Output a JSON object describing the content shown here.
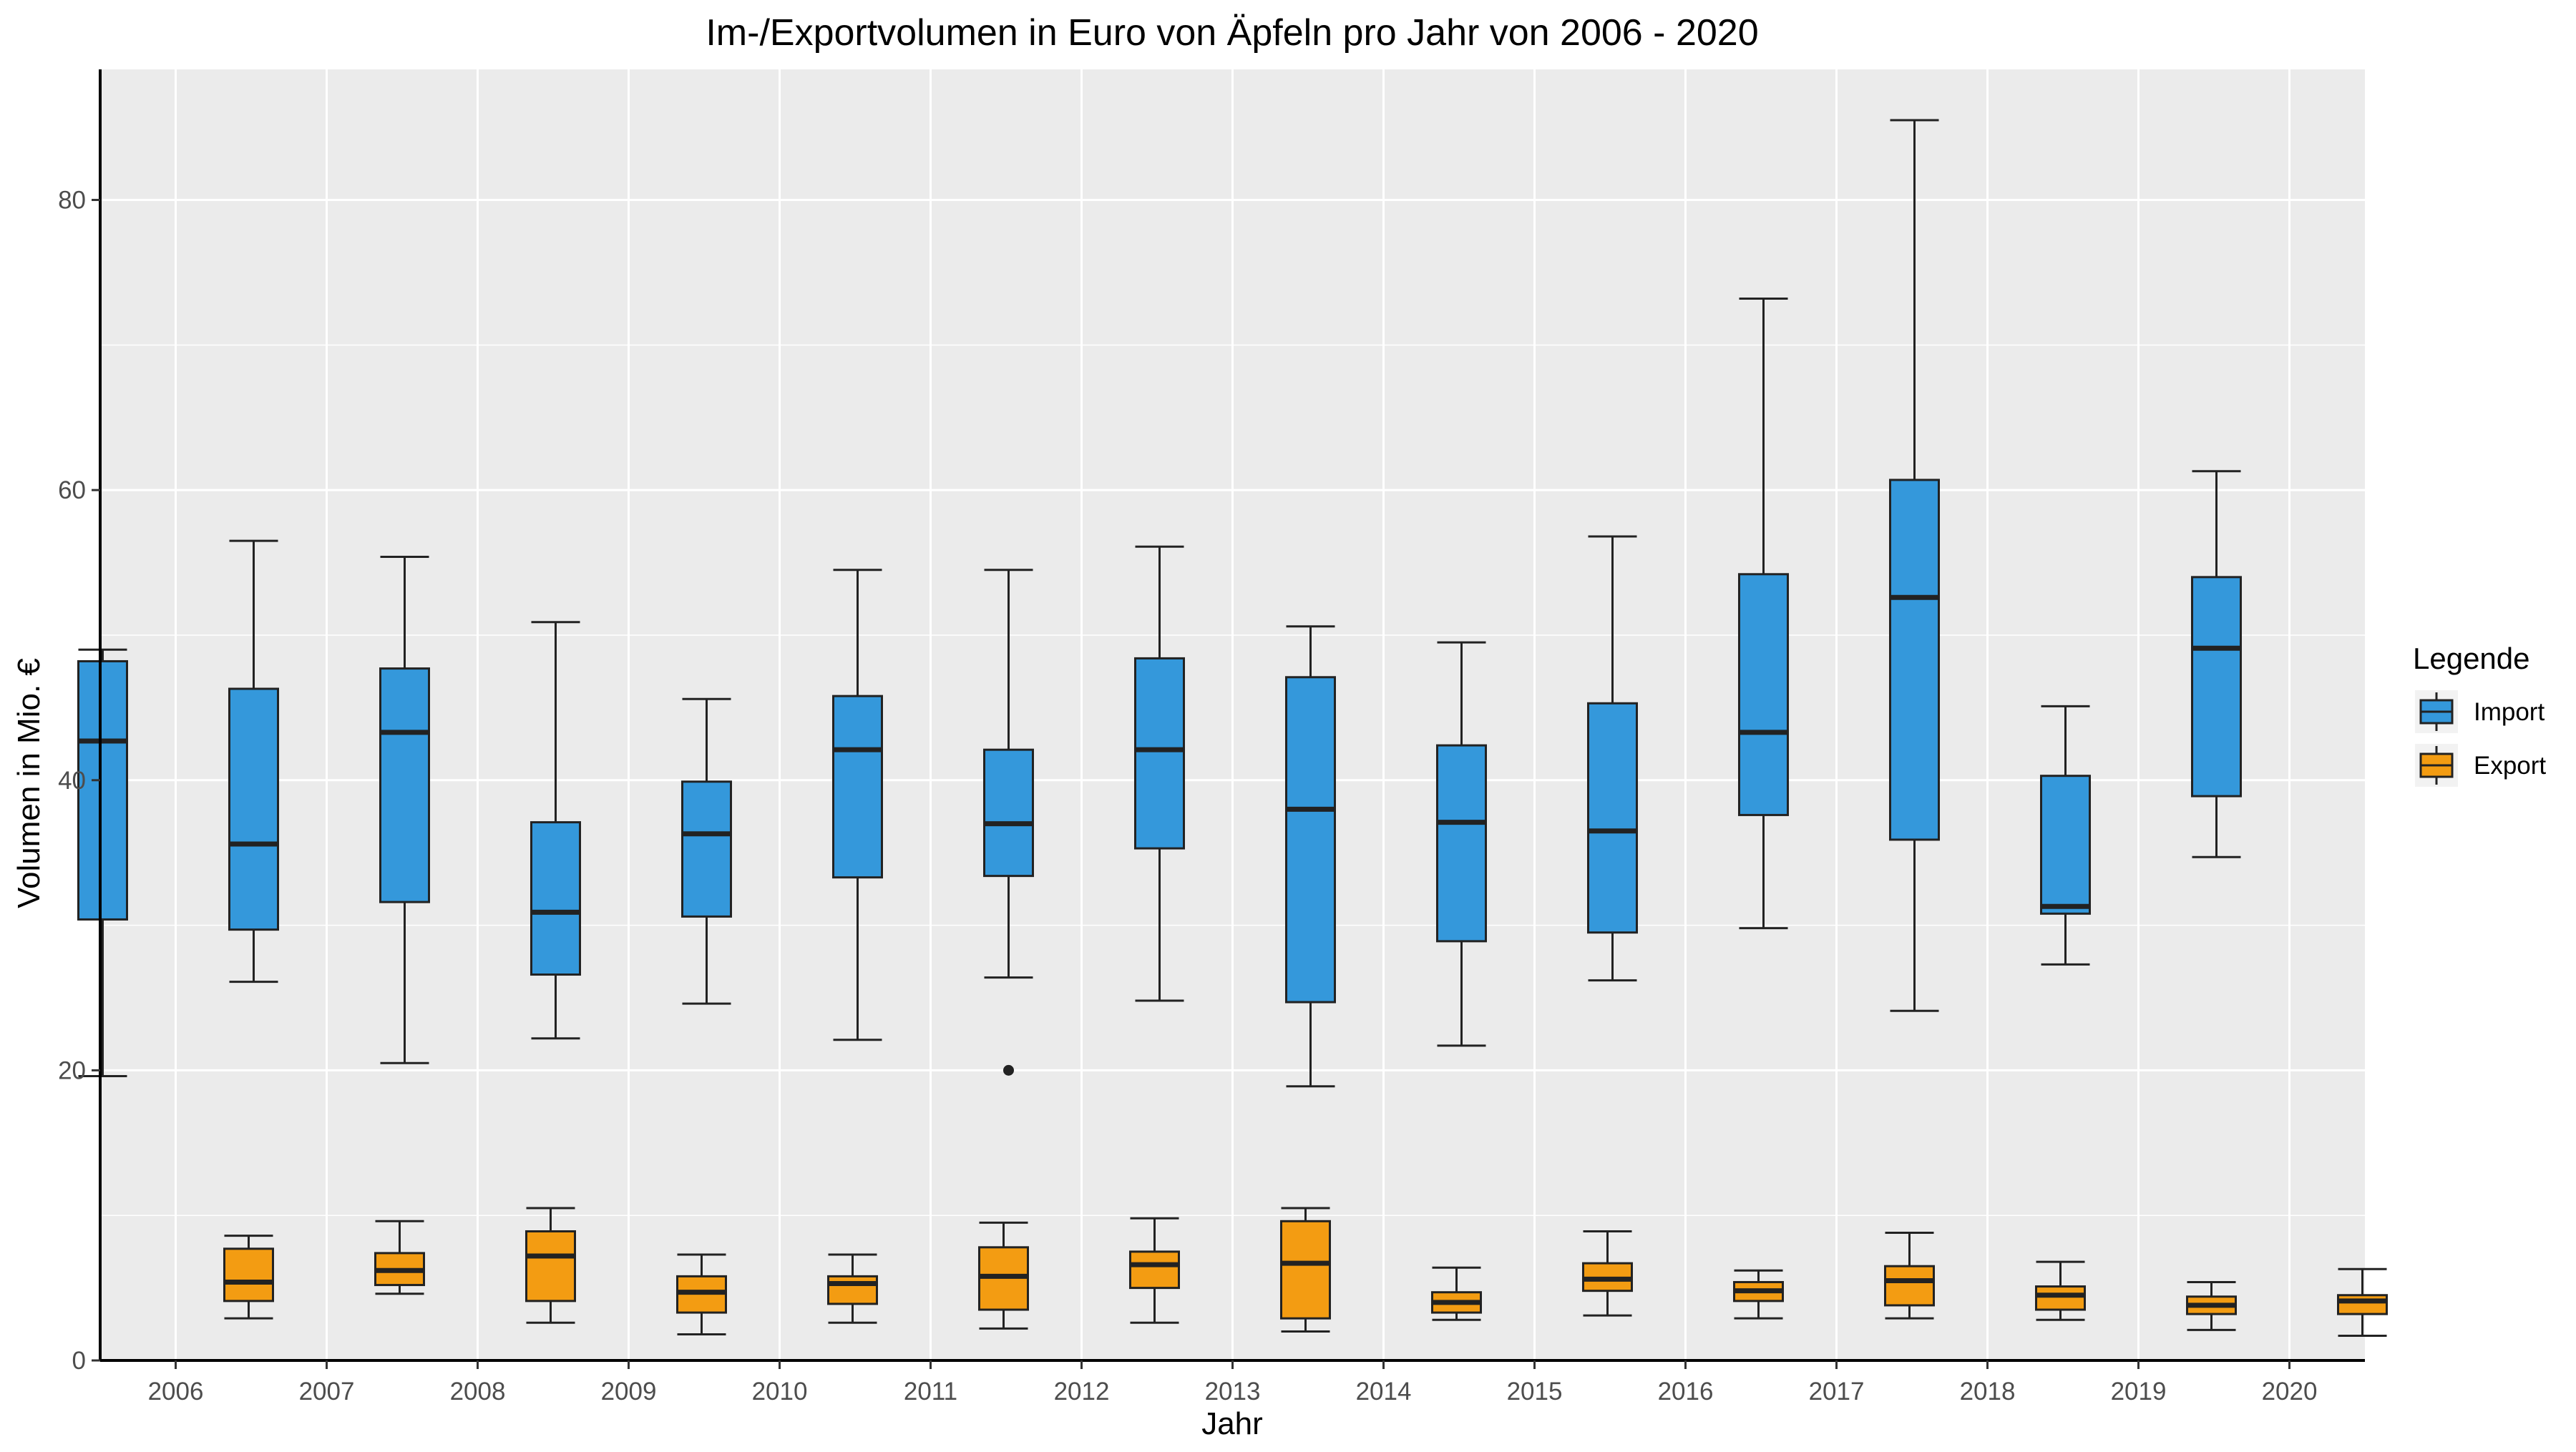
{
  "chart_data": {
    "type": "boxplot",
    "title": "Im-/Exportvolumen in Euro von Äpfeln pro Jahr von 2006 - 2020",
    "xlabel": "Jahr",
    "ylabel": "Volumen in Mio. €",
    "ylim": [
      0,
      89
    ],
    "yticks": [
      0,
      20,
      40,
      60,
      80
    ],
    "grid": true,
    "legend": {
      "title": "Legende",
      "position": "right"
    },
    "categories": [
      "2006",
      "2007",
      "2008",
      "2009",
      "2010",
      "2011",
      "2012",
      "2013",
      "2014",
      "2015",
      "2016",
      "2017",
      "2018",
      "2019",
      "2020"
    ],
    "series": [
      {
        "name": "Import",
        "color": "#3498db",
        "boxes": [
          {
            "min": 19.6,
            "q1": 30.4,
            "median": 42.7,
            "q3": 48.2,
            "max": 49.0,
            "outliers": []
          },
          {
            "min": 26.1,
            "q1": 29.7,
            "median": 35.6,
            "q3": 46.3,
            "max": 56.5,
            "outliers": []
          },
          {
            "min": 20.5,
            "q1": 31.6,
            "median": 43.3,
            "q3": 47.7,
            "max": 55.4,
            "outliers": []
          },
          {
            "min": 22.2,
            "q1": 26.6,
            "median": 30.9,
            "q3": 37.1,
            "max": 50.9,
            "outliers": []
          },
          {
            "min": 24.6,
            "q1": 30.6,
            "median": 36.3,
            "q3": 39.9,
            "max": 45.6,
            "outliers": []
          },
          {
            "min": 22.1,
            "q1": 33.3,
            "median": 42.1,
            "q3": 45.8,
            "max": 54.5,
            "outliers": []
          },
          {
            "min": 26.4,
            "q1": 33.4,
            "median": 37.0,
            "q3": 42.1,
            "max": 54.5,
            "outliers": [
              20.0
            ]
          },
          {
            "min": 24.8,
            "q1": 35.3,
            "median": 42.1,
            "q3": 48.4,
            "max": 56.1,
            "outliers": []
          },
          {
            "min": 18.9,
            "q1": 24.7,
            "median": 38.0,
            "q3": 47.1,
            "max": 50.6,
            "outliers": []
          },
          {
            "min": 21.7,
            "q1": 28.9,
            "median": 37.1,
            "q3": 42.4,
            "max": 49.5,
            "outliers": []
          },
          {
            "min": 26.2,
            "q1": 29.5,
            "median": 36.5,
            "q3": 45.3,
            "max": 56.8,
            "outliers": []
          },
          {
            "min": 29.8,
            "q1": 37.6,
            "median": 43.3,
            "q3": 54.2,
            "max": 73.2,
            "outliers": []
          },
          {
            "min": 24.1,
            "q1": 35.9,
            "median": 52.6,
            "q3": 60.7,
            "max": 85.5,
            "outliers": []
          },
          {
            "min": 27.3,
            "q1": 30.8,
            "median": 31.3,
            "q3": 40.3,
            "max": 45.1,
            "outliers": []
          },
          {
            "min": 34.7,
            "q1": 38.9,
            "median": 49.1,
            "q3": 54.0,
            "max": 61.3,
            "outliers": []
          }
        ]
      },
      {
        "name": "Export",
        "color": "#f39c12",
        "boxes": [
          {
            "min": 2.9,
            "q1": 4.1,
            "median": 5.4,
            "q3": 7.7,
            "max": 8.6,
            "outliers": []
          },
          {
            "min": 4.6,
            "q1": 5.2,
            "median": 6.2,
            "q3": 7.4,
            "max": 9.6,
            "outliers": []
          },
          {
            "min": 2.6,
            "q1": 4.1,
            "median": 7.2,
            "q3": 8.9,
            "max": 10.5,
            "outliers": []
          },
          {
            "min": 1.8,
            "q1": 3.3,
            "median": 4.7,
            "q3": 5.8,
            "max": 7.3,
            "outliers": []
          },
          {
            "min": 2.6,
            "q1": 3.9,
            "median": 5.3,
            "q3": 5.8,
            "max": 7.3,
            "outliers": []
          },
          {
            "min": 2.2,
            "q1": 3.5,
            "median": 5.8,
            "q3": 7.8,
            "max": 9.5,
            "outliers": []
          },
          {
            "min": 2.6,
            "q1": 5.0,
            "median": 6.6,
            "q3": 7.5,
            "max": 9.8,
            "outliers": []
          },
          {
            "min": 2.0,
            "q1": 2.9,
            "median": 6.7,
            "q3": 9.6,
            "max": 10.5,
            "outliers": []
          },
          {
            "min": 2.8,
            "q1": 3.3,
            "median": 4.0,
            "q3": 4.7,
            "max": 6.4,
            "outliers": []
          },
          {
            "min": 3.1,
            "q1": 4.8,
            "median": 5.6,
            "q3": 6.7,
            "max": 8.9,
            "outliers": []
          },
          {
            "min": 2.9,
            "q1": 4.1,
            "median": 4.8,
            "q3": 5.4,
            "max": 6.2,
            "outliers": []
          },
          {
            "min": 2.9,
            "q1": 3.8,
            "median": 5.5,
            "q3": 6.5,
            "max": 8.8,
            "outliers": []
          },
          {
            "min": 2.8,
            "q1": 3.5,
            "median": 4.5,
            "q3": 5.1,
            "max": 6.8,
            "outliers": []
          },
          {
            "min": 2.1,
            "q1": 3.2,
            "median": 3.8,
            "q3": 4.4,
            "max": 5.4,
            "outliers": []
          },
          {
            "min": 1.7,
            "q1": 3.2,
            "median": 4.1,
            "q3": 4.5,
            "max": 6.3,
            "outliers": []
          }
        ]
      }
    ]
  }
}
